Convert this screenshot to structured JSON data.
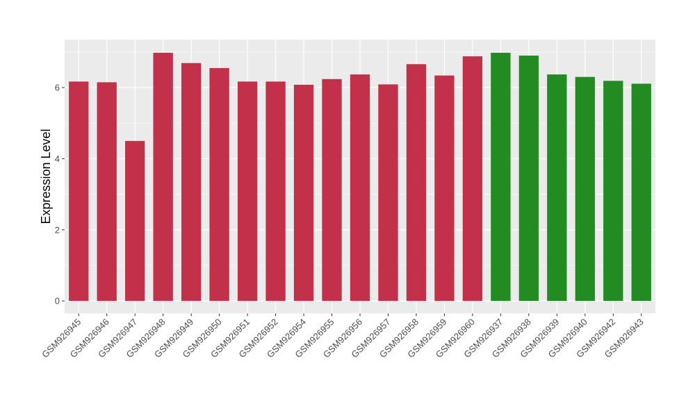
{
  "chart_data": {
    "type": "bar",
    "title": "",
    "xlabel": "",
    "ylabel": "Expression Level",
    "ylim": [
      -0.35,
      7.35
    ],
    "yticks": [
      0,
      2,
      4,
      6
    ],
    "grid": true,
    "categories": [
      "GSM926945",
      "GSM926946",
      "GSM926947",
      "GSM926948",
      "GSM926949",
      "GSM926950",
      "GSM926951",
      "GSM926952",
      "GSM926954",
      "GSM926955",
      "GSM926956",
      "GSM926957",
      "GSM926958",
      "GSM926959",
      "GSM926960",
      "GSM926937",
      "GSM926938",
      "GSM926939",
      "GSM926940",
      "GSM926942",
      "GSM926943"
    ],
    "values": [
      6.17,
      6.15,
      4.5,
      6.98,
      6.69,
      6.55,
      6.17,
      6.17,
      6.08,
      6.24,
      6.37,
      6.09,
      6.66,
      6.34,
      6.88,
      6.98,
      6.9,
      6.37,
      6.3,
      6.19,
      6.11
    ],
    "groups": [
      "a",
      "a",
      "a",
      "a",
      "a",
      "a",
      "a",
      "a",
      "a",
      "a",
      "a",
      "a",
      "a",
      "a",
      "a",
      "b",
      "b",
      "b",
      "b",
      "b",
      "b"
    ],
    "colors": {
      "a": "#C3304A",
      "b": "#228B22",
      "panel": "#EBEBEB",
      "grid": "#FFFFFF"
    }
  }
}
